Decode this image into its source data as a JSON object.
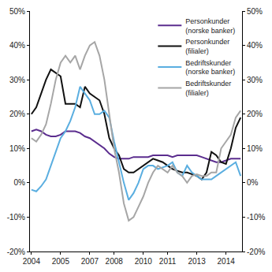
{
  "chart_data": {
    "type": "line",
    "categories": [
      "2004",
      null,
      null,
      null,
      null,
      null,
      "2005",
      null,
      null,
      null,
      null,
      null,
      "2007",
      null,
      null,
      null,
      null,
      "2008",
      null,
      null,
      null,
      null,
      null,
      "2010",
      null,
      null,
      null,
      null,
      "2011",
      null,
      null,
      null,
      null,
      null,
      "2013",
      null,
      null,
      null,
      null,
      null,
      "2014",
      null,
      null,
      null
    ],
    "series": [
      {
        "name": "Personkunder (norske banker)",
        "color": "#5b2d8e",
        "values": [
          15,
          15.5,
          15,
          14,
          13.5,
          13.5,
          14,
          15,
          15,
          15,
          14.5,
          13.5,
          13,
          12,
          11,
          10,
          8.5,
          7.5,
          7,
          7,
          7,
          7.5,
          7.5,
          7.5,
          7.5,
          8,
          8,
          8,
          8,
          7.5,
          8,
          8,
          8,
          8,
          8,
          7.5,
          7,
          6.5,
          6,
          6,
          6.5,
          7,
          7,
          7
        ]
      },
      {
        "name": "Personkunder (filialer)",
        "color": "#111111",
        "values": [
          20,
          22,
          26,
          30,
          33,
          32,
          31,
          23,
          23,
          23,
          22,
          28,
          26,
          25,
          24,
          20,
          13,
          10,
          8,
          4,
          3,
          3,
          4,
          5,
          6,
          7,
          6.5,
          6,
          5,
          4,
          3.5,
          3,
          3,
          2.5,
          2,
          1,
          3,
          9,
          8,
          6,
          5.5,
          10,
          16,
          19
        ]
      },
      {
        "name": "Bedriftskunder (norske banker)",
        "color": "#5aaee0",
        "values": [
          -2,
          -2.5,
          -1,
          1,
          5,
          9,
          13,
          15,
          18,
          22,
          28,
          26,
          24,
          20,
          20,
          21,
          19,
          12,
          6,
          0,
          -5,
          -3,
          0,
          4,
          5,
          5,
          4,
          4.5,
          5,
          6,
          3,
          2,
          5,
          3,
          2,
          1,
          1,
          1,
          2,
          3,
          4,
          5,
          6,
          2
        ]
      },
      {
        "name": "Bedriftskunder (filialer)",
        "color": "#a6a6a6",
        "values": [
          13,
          12,
          14,
          17,
          23,
          30,
          35,
          37,
          35,
          37,
          33,
          37,
          40,
          41,
          37,
          30,
          20,
          10,
          3,
          -6,
          -11,
          -10,
          -7,
          -4,
          0,
          3,
          5,
          4,
          3,
          5,
          3,
          2,
          0,
          2,
          2.5,
          2,
          2,
          3,
          3,
          10,
          12,
          14,
          19,
          21
        ]
      }
    ],
    "ylim": [
      -20,
      50
    ],
    "yticks": [
      {
        "value": -20,
        "label": "-20%"
      },
      {
        "value": -10,
        "label": "-10%"
      },
      {
        "value": 0,
        "label": "0%"
      },
      {
        "value": 10,
        "label": "10%"
      },
      {
        "value": 20,
        "label": "20%"
      },
      {
        "value": 30,
        "label": "30%"
      },
      {
        "value": 40,
        "label": "40%"
      },
      {
        "value": 50,
        "label": "50%"
      }
    ],
    "y2lim": [
      -20,
      50
    ],
    "y2ticks": [
      {
        "value": -20,
        "label": "-20%"
      },
      {
        "value": -10,
        "label": "-10%"
      },
      {
        "value": 0,
        "label": "0%"
      },
      {
        "value": 10,
        "label": "10%"
      },
      {
        "value": 20,
        "label": "20%"
      },
      {
        "value": 30,
        "label": "30%"
      },
      {
        "value": 40,
        "label": "40%"
      },
      {
        "value": 50,
        "label": "50%"
      }
    ],
    "grid": false,
    "legend": "top right"
  }
}
